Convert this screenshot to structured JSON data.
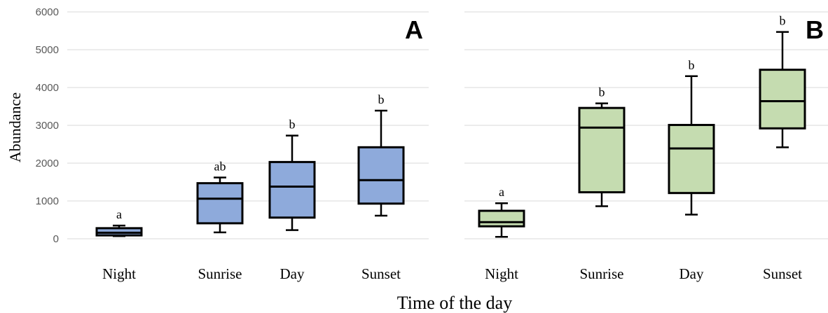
{
  "chart_data": [
    {
      "type": "boxplot",
      "panel_label": "A",
      "color": "#8eaadb",
      "categories": [
        "Night",
        "Sunrise",
        "Day",
        "Sunset"
      ],
      "y_ticks": [
        "0",
        "1000",
        "2000",
        "3000",
        "4000",
        "5000",
        "6000"
      ],
      "ylim": [
        0,
        6000
      ],
      "grid": true,
      "ylabel": "Abundance",
      "boxes": [
        {
          "category": "Night",
          "min": 70,
          "q1": 90,
          "median": 160,
          "q3": 280,
          "max": 350,
          "sig": "a"
        },
        {
          "category": "Sunrise",
          "min": 170,
          "q1": 410,
          "median": 1060,
          "q3": 1470,
          "max": 1620,
          "sig": "ab"
        },
        {
          "category": "Day",
          "min": 230,
          "q1": 560,
          "median": 1380,
          "q3": 2030,
          "max": 2730,
          "sig": "b"
        },
        {
          "category": "Sunset",
          "min": 610,
          "q1": 930,
          "median": 1550,
          "q3": 2420,
          "max": 3390,
          "sig": "b"
        }
      ]
    },
    {
      "type": "boxplot",
      "panel_label": "B",
      "color": "#c5dcb0",
      "categories": [
        "Night",
        "Sunrise",
        "Day",
        "Sunset"
      ],
      "ylim": [
        0,
        6000
      ],
      "grid": true,
      "boxes": [
        {
          "category": "Night",
          "min": 50,
          "q1": 330,
          "median": 440,
          "q3": 740,
          "max": 940,
          "sig": "a"
        },
        {
          "category": "Sunrise",
          "min": 860,
          "q1": 1230,
          "median": 2940,
          "q3": 3460,
          "max": 3580,
          "sig": "b"
        },
        {
          "category": "Day",
          "min": 640,
          "q1": 1210,
          "median": 2390,
          "q3": 3010,
          "max": 4300,
          "sig": "b"
        },
        {
          "category": "Sunset",
          "min": 2420,
          "q1": 2920,
          "median": 3640,
          "q3": 4470,
          "max": 5470,
          "sig": "b"
        }
      ]
    }
  ],
  "shared": {
    "xlabel": "Time of the day"
  }
}
